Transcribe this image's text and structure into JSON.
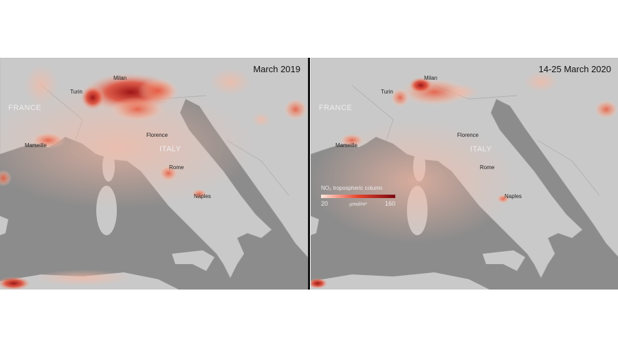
{
  "panels": [
    {
      "title": "March 2019",
      "labels": [
        "Milan",
        "Turin",
        "FRANCE",
        "Marseille",
        "Florence",
        "ITALY",
        "Rome",
        "Naples"
      ]
    },
    {
      "title": "14-25 March 2020",
      "labels": [
        "Milan",
        "Turin",
        "FRANCE",
        "Marseille",
        "Florence",
        "ITALY",
        "Rome",
        "Naples"
      ]
    }
  ],
  "legend": {
    "title": "NO₂ tropospheric column",
    "unit": "µmol/m²",
    "min": 20,
    "max": 160
  }
}
